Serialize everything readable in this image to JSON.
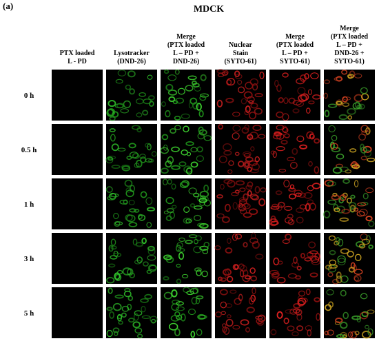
{
  "panel_label": "(a)",
  "title": "MDCK",
  "columns": [
    {
      "lines": [
        "PTX loaded",
        "L - PD"
      ]
    },
    {
      "lines": [
        "Lysotracker",
        "(DND-26)"
      ]
    },
    {
      "lines": [
        "Merge",
        "(PTX loaded",
        "L – PD +",
        "DND-26)"
      ]
    },
    {
      "lines": [
        "Nuclear",
        "Stain",
        "(SYTO-61)"
      ]
    },
    {
      "lines": [
        "Merge",
        "(PTX loaded",
        "L – PD +",
        "SYTO-61)"
      ]
    },
    {
      "lines": [
        "Merge",
        "(PTX loaded",
        "L – PD +",
        "DND-26 +",
        "SYTO-61)"
      ]
    }
  ],
  "rows": [
    "0 h",
    "0.5 h",
    "1 h",
    "3 h",
    "5 h"
  ]
}
